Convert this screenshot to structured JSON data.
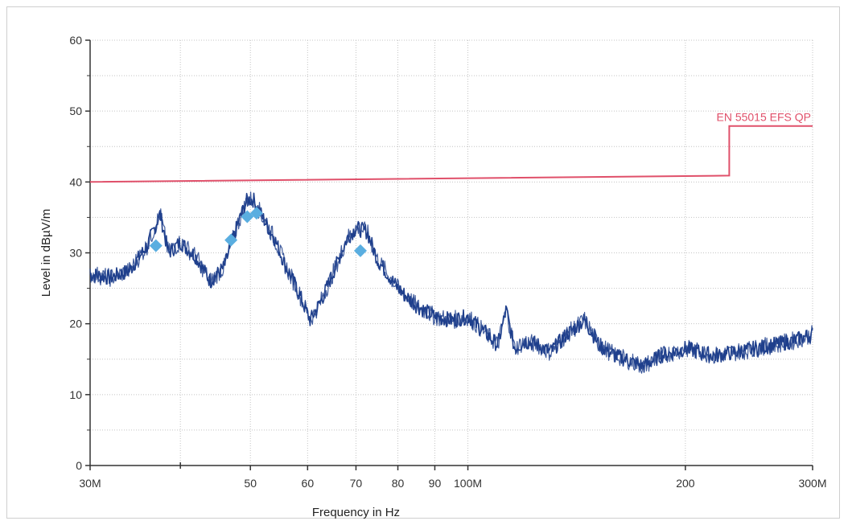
{
  "chart_data": {
    "type": "line",
    "title": "",
    "xlabel": "Frequency in Hz",
    "ylabel": "Level in dBµV/m",
    "x_scale": "log",
    "xlim": [
      30000000,
      300000000
    ],
    "ylim": [
      0,
      60
    ],
    "grid": true,
    "x_ticks": [
      {
        "value": 30000000,
        "label": "30M"
      },
      {
        "value": 50000000,
        "label": "50"
      },
      {
        "value": 60000000,
        "label": "60"
      },
      {
        "value": 70000000,
        "label": "70"
      },
      {
        "value": 80000000,
        "label": "80"
      },
      {
        "value": 90000000,
        "label": "90"
      },
      {
        "value": 100000000,
        "label": "100M"
      },
      {
        "value": 200000000,
        "label": "200"
      },
      {
        "value": 300000000,
        "label": "300M"
      }
    ],
    "y_ticks": [
      0,
      10,
      20,
      30,
      40,
      50,
      60
    ],
    "series": [
      {
        "name": "EN 55015 EFS QP",
        "kind": "limit",
        "color": "#e0506a",
        "x": [
          30000000,
          230000000,
          230000000,
          300000000
        ],
        "y": [
          40,
          40.9,
          47.9,
          47.9
        ]
      },
      {
        "kind": "trace",
        "color": "#1f3f8c",
        "x": [
          30000000,
          32000000,
          34000000,
          36000000,
          37500000,
          38500000,
          40000000,
          42000000,
          44000000,
          46000000,
          48000000,
          49500000,
          50500000,
          52000000,
          54000000,
          56000000,
          58000000,
          60500000,
          62500000,
          65000000,
          68000000,
          70000000,
          72500000,
          75000000,
          80000000,
          85000000,
          90000000,
          95000000,
          100000000,
          105000000,
          110000000,
          113000000,
          116000000,
          120000000,
          125000000,
          130000000,
          137000000,
          145000000,
          152000000,
          160000000,
          170000000,
          175000000,
          185000000,
          200000000,
          220000000,
          250000000,
          280000000,
          300000000
        ],
        "y": [
          27,
          26.5,
          27.5,
          31,
          35.5,
          30,
          31.5,
          29.5,
          26,
          28,
          34,
          37.5,
          37.5,
          35,
          32,
          28,
          25,
          20.5,
          23,
          27,
          32,
          33.5,
          33,
          29,
          25,
          22.5,
          21,
          20.5,
          21,
          19,
          17,
          22,
          16.5,
          17.5,
          17,
          16,
          18.5,
          20.5,
          17,
          15.5,
          14.5,
          14,
          15.5,
          16.5,
          15.5,
          16.5,
          17.5,
          18.5
        ]
      },
      {
        "kind": "markers",
        "color": "#5aaee0",
        "x": [
          37000000,
          47000000,
          49500000,
          51000000,
          71000000
        ],
        "y": [
          31,
          31.8,
          35.1,
          35.6,
          30.3
        ]
      }
    ]
  }
}
